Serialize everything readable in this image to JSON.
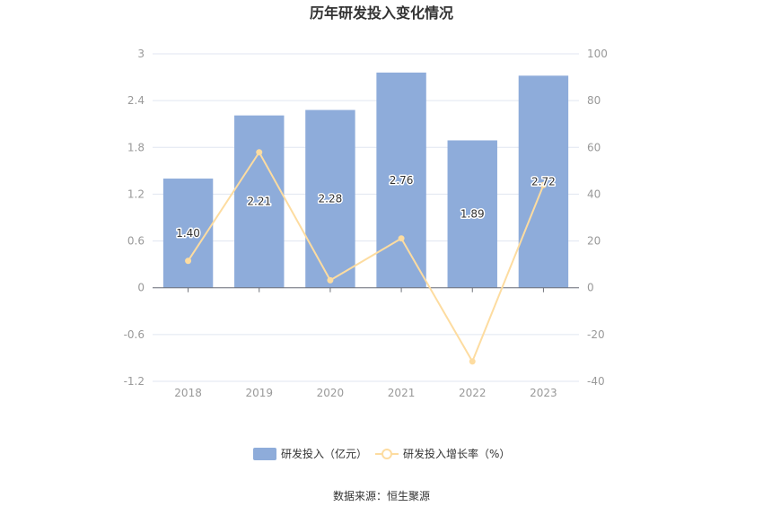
{
  "chart_data": {
    "type": "bar",
    "title": "历年研发投入变化情况",
    "categories": [
      "2018",
      "2019",
      "2020",
      "2021",
      "2022",
      "2023"
    ],
    "series": [
      {
        "name": "研发投入（亿元）",
        "type": "bar",
        "axis": "left",
        "values": [
          1.4,
          2.21,
          2.28,
          2.76,
          1.89,
          2.72
        ],
        "labels": [
          "1.40",
          "2.21",
          "2.28",
          "2.76",
          "1.89",
          "2.72"
        ],
        "color": "#8eacda"
      },
      {
        "name": "研发投入增长率（%）",
        "type": "line",
        "axis": "right",
        "values": [
          11.5,
          57.9,
          3.2,
          21.1,
          -31.5,
          43.9
        ],
        "color": "#fddca0"
      }
    ],
    "y_left": {
      "ylim": [
        -1.2,
        3
      ],
      "ticks": [
        "3",
        "2.4",
        "1.8",
        "1.2",
        "0.6",
        "0",
        "-0.6",
        "-1.2"
      ]
    },
    "y_right": {
      "ylim": [
        -40,
        100
      ],
      "ticks": [
        "100",
        "80",
        "60",
        "40",
        "20",
        "0",
        "-20",
        "-40"
      ]
    },
    "grid": true,
    "legend": "bottom",
    "source": "数据来源：恒生聚源"
  }
}
